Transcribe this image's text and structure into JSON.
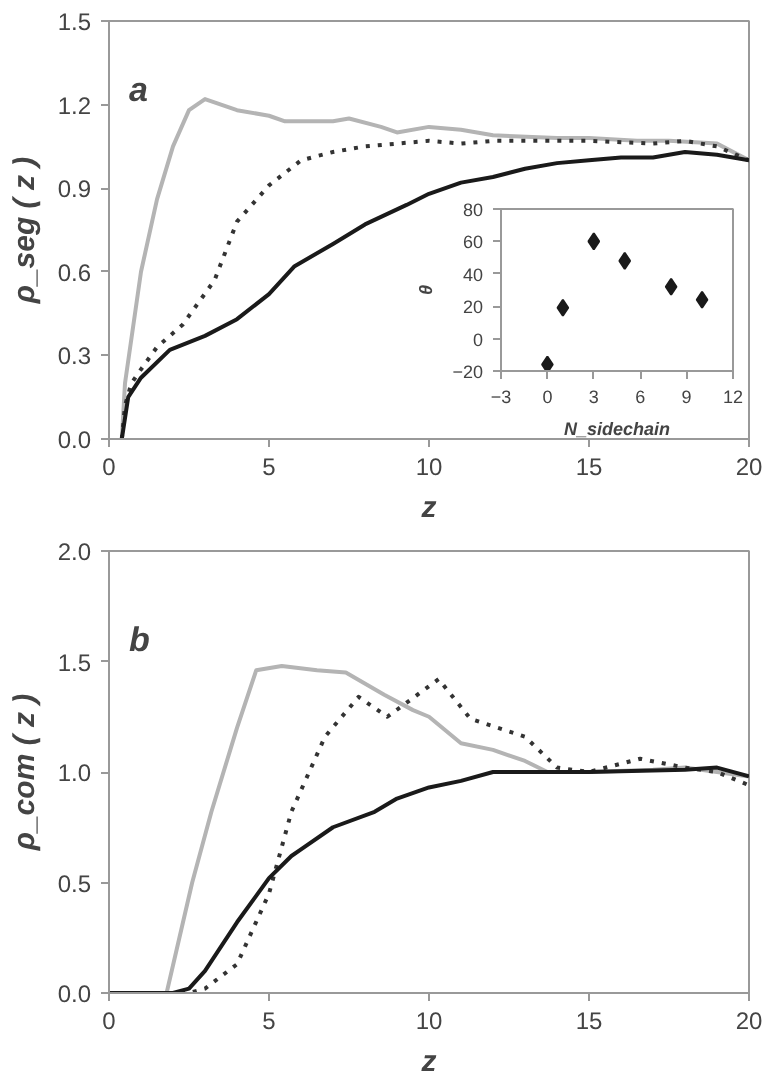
{
  "chart_data": [
    {
      "type": "line",
      "annotations": [
        "a"
      ],
      "xlabel": "z",
      "ylabel": "ρ_seg ( z )",
      "xlim": [
        0,
        20
      ],
      "ylim": [
        0,
        1.5
      ],
      "xticks": [
        0,
        5,
        10,
        15,
        20
      ],
      "yticks": [
        {
          "value": 0,
          "label": "0.0"
        },
        0.3,
        0.6,
        0.9,
        1.2,
        1.5
      ],
      "grid": false,
      "series": [
        {
          "color": "#b4b4b4",
          "line_style": "solid",
          "x": [
            0.4,
            0.5,
            1,
            1.5,
            2,
            2.5,
            3,
            3.5,
            4,
            5,
            5.5,
            6,
            7,
            7.5,
            8.5,
            9,
            10,
            11,
            12,
            14,
            15,
            16.5,
            17.5,
            19,
            20
          ],
          "values": [
            0,
            0.2,
            0.6,
            0.86,
            1.05,
            1.18,
            1.22,
            1.2,
            1.18,
            1.16,
            1.14,
            1.14,
            1.14,
            1.15,
            1.12,
            1.1,
            1.12,
            1.11,
            1.09,
            1.08,
            1.08,
            1.07,
            1.07,
            1.06,
            1.0
          ]
        },
        {
          "color": "#333333",
          "line_style": "dotted",
          "x": [
            0.4,
            0.5,
            0.7,
            1,
            1.5,
            2.3,
            3.3,
            4,
            5,
            6,
            7,
            8,
            10,
            11,
            12,
            15,
            17,
            18,
            19,
            20
          ],
          "values": [
            0,
            0.12,
            0.2,
            0.25,
            0.33,
            0.41,
            0.57,
            0.78,
            0.91,
            1.0,
            1.03,
            1.05,
            1.07,
            1.06,
            1.07,
            1.07,
            1.06,
            1.07,
            1.05,
            1.0
          ]
        },
        {
          "color": "#1a1a1a",
          "line_style": "solid",
          "x": [
            0.4,
            0.6,
            1,
            1.9,
            3,
            4,
            5,
            5.8,
            7,
            8,
            9.3,
            10,
            11,
            12,
            13,
            14,
            15,
            16,
            17,
            18,
            19,
            20
          ],
          "values": [
            0,
            0.15,
            0.22,
            0.32,
            0.37,
            0.43,
            0.52,
            0.62,
            0.7,
            0.77,
            0.84,
            0.88,
            0.92,
            0.94,
            0.97,
            0.99,
            1.0,
            1.01,
            1.01,
            1.03,
            1.02,
            1.0
          ]
        }
      ]
    },
    {
      "type": "scatter",
      "xlabel": "N_sidechain",
      "ylabel": "θ",
      "marker": "diamond",
      "xlim": [
        -3,
        12
      ],
      "ylim": [
        -20,
        80
      ],
      "xticks": [
        -3,
        0,
        3,
        6,
        9,
        12
      ],
      "yticks": [
        -20,
        0,
        20,
        40,
        60,
        80
      ],
      "grid": false,
      "series": [
        {
          "color": "#1a1a1a",
          "x": [
            0,
            1,
            3,
            5,
            8,
            10
          ],
          "values": [
            -16,
            19,
            60,
            48,
            32,
            24
          ]
        }
      ]
    },
    {
      "type": "line",
      "annotations": [
        "b"
      ],
      "xlabel": "z",
      "ylabel": "ρ_com ( z )",
      "xlim": [
        0,
        20
      ],
      "ylim": [
        0,
        2
      ],
      "xticks": [
        0,
        5,
        10,
        15,
        20
      ],
      "yticks": [
        {
          "value": 0,
          "label": "0.0"
        },
        0.5,
        {
          "value": 1,
          "label": "1.0"
        },
        1.5,
        {
          "value": 2,
          "label": "2.0"
        }
      ],
      "grid": false,
      "series": [
        {
          "color": "#b4b4b4",
          "line_style": "solid",
          "x": [
            0,
            1.8,
            2.6,
            3.2,
            4,
            4.6,
            5.4,
            6.5,
            7.4,
            8.6,
            9.5,
            10,
            11,
            12,
            13,
            13.7,
            15,
            17,
            18,
            19,
            20
          ],
          "values": [
            0,
            0,
            0.5,
            0.82,
            1.2,
            1.46,
            1.48,
            1.46,
            1.45,
            1.35,
            1.28,
            1.25,
            1.13,
            1.1,
            1.05,
            1.0,
            1.0,
            1.01,
            1.02,
            1.0,
            0.98
          ]
        },
        {
          "color": "#333333",
          "line_style": "dotted",
          "x": [
            0,
            2.5,
            3,
            4,
            5,
            5.7,
            6.75,
            7.8,
            8.7,
            10.3,
            11.3,
            13,
            14,
            15,
            16.6,
            18,
            19,
            20
          ],
          "values": [
            0,
            0,
            0.02,
            0.13,
            0.45,
            0.82,
            1.16,
            1.34,
            1.25,
            1.42,
            1.24,
            1.16,
            1.02,
            1.0,
            1.06,
            1.02,
            1.0,
            0.94
          ]
        },
        {
          "color": "#1a1a1a",
          "line_style": "solid",
          "x": [
            0,
            2,
            2.5,
            3,
            4,
            5,
            5.7,
            6,
            7,
            8.3,
            9,
            10,
            11,
            12,
            15,
            18,
            19,
            20
          ],
          "values": [
            0,
            0,
            0.02,
            0.1,
            0.32,
            0.52,
            0.62,
            0.65,
            0.75,
            0.82,
            0.88,
            0.93,
            0.96,
            1.0,
            1.0,
            1.01,
            1.02,
            0.98
          ]
        }
      ]
    }
  ]
}
